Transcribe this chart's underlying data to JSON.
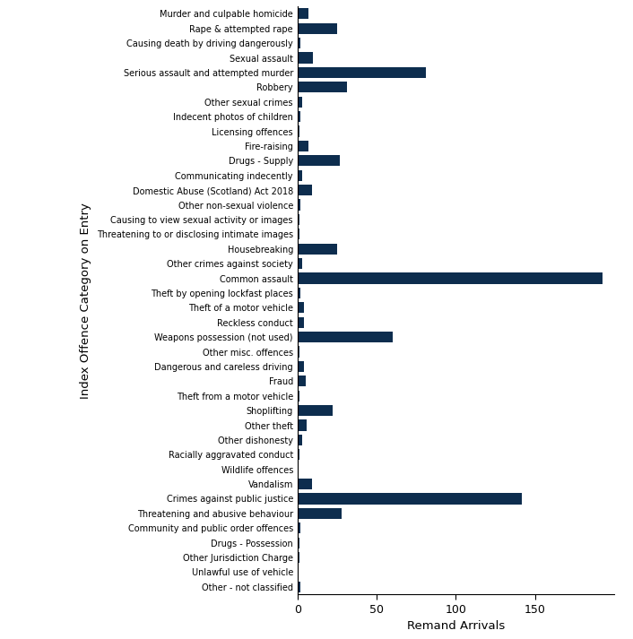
{
  "categories": [
    "Murder and culpable homicide",
    "Rape & attempted rape",
    "Causing death by driving dangerously",
    "Sexual assault",
    "Serious assault and attempted murder",
    "Robbery",
    "Other sexual crimes",
    "Indecent photos of children",
    "Licensing offences",
    "Fire-raising",
    "Drugs - Supply",
    "Communicating indecently",
    "Domestic Abuse (Scotland) Act 2018",
    "Other non-sexual violence",
    "Causing to view sexual activity or images",
    "Threatening to or disclosing intimate images",
    "Housebreaking",
    "Other crimes against society",
    "Common assault",
    "Theft by opening lockfast places",
    "Theft of a motor vehicle",
    "Reckless conduct",
    "Weapons possession (not used)",
    "Other misc. offences",
    "Dangerous and careless driving",
    "Fraud",
    "Theft from a motor vehicle",
    "Shoplifting",
    "Other theft",
    "Other dishonesty",
    "Racially aggravated conduct",
    "Wildlife offences",
    "Vandalism",
    "Crimes against public justice",
    "Threatening and abusive behaviour",
    "Community and public order offences",
    "Drugs - Possession",
    "Other Jurisdiction Charge",
    "Unlawful use of vehicle",
    "Other - not classified"
  ],
  "values": [
    7,
    25,
    2,
    10,
    81,
    31,
    3,
    2,
    1,
    7,
    27,
    3,
    9,
    2,
    1,
    1,
    25,
    3,
    193,
    2,
    4,
    4,
    60,
    1,
    4,
    5,
    1,
    22,
    6,
    3,
    1,
    0,
    9,
    142,
    28,
    2,
    1,
    1,
    0,
    2
  ],
  "bar_color": "#0d2d4e",
  "xlabel": "Remand Arrivals",
  "ylabel": "Index Offence Category on Entry",
  "xlim": [
    0,
    200
  ],
  "xticks": [
    0,
    50,
    100,
    150
  ],
  "figsize": [
    7.06,
    7.13
  ],
  "dpi": 100,
  "label_fontsize": 7.0,
  "axis_label_fontsize": 9.5,
  "tick_fontsize": 9.0
}
